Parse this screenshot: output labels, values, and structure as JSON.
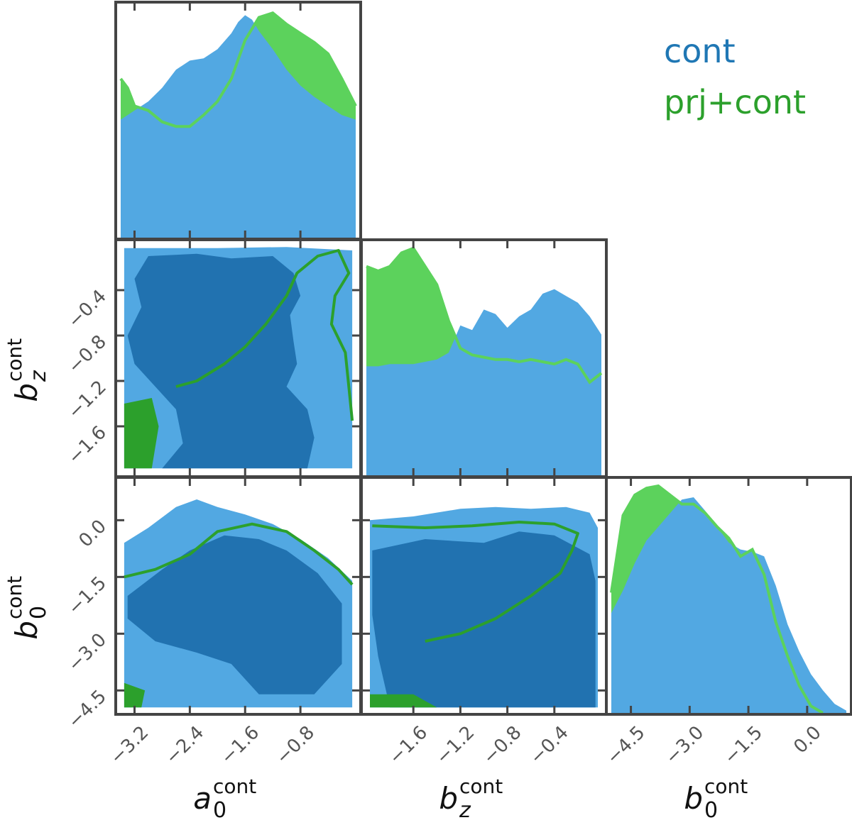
{
  "chart_data": {
    "type": "corner",
    "colors": {
      "cont": "#1f77b4",
      "cont_light": "#52a8e2",
      "cont_dark": "#2172b0",
      "prj_cont": "#2ca02c",
      "prj_cont_light": "#5cd25c",
      "frame": "#444444"
    },
    "legend": {
      "placement": "top-right",
      "entries": [
        {
          "label": "cont",
          "color": "#1f77b4"
        },
        {
          "label": "prj+cont",
          "color": "#2ca02c"
        }
      ]
    },
    "parameters": [
      {
        "id": "a0",
        "symbol": "a",
        "sub": "0",
        "sup": "cont",
        "range": [
          -3.4,
          0.0
        ],
        "ticks": [
          "−3.2",
          "−2.4",
          "−1.6",
          "−0.8"
        ],
        "tick_values": [
          -3.2,
          -2.4,
          -1.6,
          -0.8
        ]
      },
      {
        "id": "bz",
        "symbol": "b",
        "sub": "z",
        "sup": "cont",
        "range": [
          -2.0,
          0.0
        ],
        "ticks": [
          "−1.6",
          "−1.2",
          "−0.8",
          "−0.4"
        ],
        "tick_values": [
          -1.6,
          -1.2,
          -0.8,
          -0.4
        ]
      },
      {
        "id": "b0",
        "symbol": "b",
        "sub": "0",
        "sup": "cont",
        "range": [
          -5.0,
          1.0
        ],
        "ticks": [
          "−4.5",
          "−3.0",
          "−1.5",
          "0.0"
        ],
        "tick_values": [
          -4.5,
          -3.0,
          -1.5,
          0.0
        ]
      }
    ],
    "marginals": [
      {
        "param": "a0",
        "cont": {
          "x": [
            -3.4,
            -3.2,
            -3.0,
            -2.8,
            -2.6,
            -2.4,
            -2.2,
            -2.0,
            -1.8,
            -1.7,
            -1.6,
            -1.5,
            -1.4,
            -1.2,
            -1.0,
            -0.8,
            -0.6,
            -0.4,
            -0.2,
            0.0
          ],
          "y": [
            0.52,
            0.56,
            0.6,
            0.66,
            0.74,
            0.78,
            0.79,
            0.83,
            0.9,
            0.95,
            0.98,
            0.96,
            0.91,
            0.83,
            0.74,
            0.67,
            0.62,
            0.58,
            0.54,
            0.52
          ]
        },
        "prj_cont": {
          "x": [
            -3.4,
            -3.3,
            -3.2,
            -3.0,
            -2.8,
            -2.6,
            -2.4,
            -2.2,
            -2.0,
            -1.8,
            -1.6,
            -1.4,
            -1.2,
            -1.0,
            -0.8,
            -0.6,
            -0.4,
            -0.2,
            0.0
          ],
          "y": [
            0.7,
            0.66,
            0.58,
            0.56,
            0.51,
            0.49,
            0.49,
            0.54,
            0.6,
            0.7,
            0.87,
            0.97,
            0.99,
            0.94,
            0.9,
            0.86,
            0.81,
            0.7,
            0.58
          ]
        }
      },
      {
        "param": "bz",
        "cont": {
          "x": [
            -2.0,
            -1.9,
            -1.8,
            -1.7,
            -1.6,
            -1.5,
            -1.4,
            -1.3,
            -1.2,
            -1.1,
            -1.0,
            -0.9,
            -0.8,
            -0.7,
            -0.6,
            -0.5,
            -0.4,
            -0.3,
            -0.2,
            -0.1,
            0.0
          ],
          "y": [
            0.48,
            0.48,
            0.49,
            0.49,
            0.49,
            0.5,
            0.51,
            0.54,
            0.66,
            0.64,
            0.73,
            0.71,
            0.65,
            0.7,
            0.73,
            0.8,
            0.82,
            0.79,
            0.76,
            0.7,
            0.62
          ]
        },
        "prj_cont": {
          "x": [
            -2.0,
            -1.9,
            -1.8,
            -1.7,
            -1.6,
            -1.5,
            -1.4,
            -1.3,
            -1.2,
            -1.1,
            -1.0,
            -0.9,
            -0.8,
            -0.7,
            -0.6,
            -0.5,
            -0.4,
            -0.3,
            -0.2,
            -0.1,
            0.0
          ],
          "y": [
            0.92,
            0.9,
            0.92,
            0.98,
            1.0,
            0.92,
            0.84,
            0.68,
            0.56,
            0.53,
            0.52,
            0.51,
            0.51,
            0.5,
            0.51,
            0.5,
            0.49,
            0.51,
            0.49,
            0.41,
            0.45
          ]
        }
      },
      {
        "param": "b0",
        "cont": {
          "x": [
            -5.0,
            -4.7,
            -4.4,
            -4.1,
            -3.8,
            -3.5,
            -3.2,
            -2.9,
            -2.6,
            -2.3,
            -2.0,
            -1.7,
            -1.4,
            -1.1,
            -0.8,
            -0.5,
            -0.2,
            0.1,
            0.4,
            0.7,
            1.0
          ],
          "y": [
            0.44,
            0.54,
            0.66,
            0.76,
            0.82,
            0.88,
            0.94,
            0.95,
            0.89,
            0.82,
            0.75,
            0.72,
            0.71,
            0.69,
            0.56,
            0.39,
            0.27,
            0.17,
            0.1,
            0.04,
            0.01
          ]
        },
        "prj_cont": {
          "x": [
            -5.0,
            -4.7,
            -4.4,
            -4.1,
            -3.8,
            -3.5,
            -3.2,
            -2.9,
            -2.6,
            -2.3,
            -2.0,
            -1.7,
            -1.4,
            -1.1,
            -0.8,
            -0.5,
            -0.2,
            0.1,
            0.4
          ],
          "y": [
            0.53,
            0.87,
            0.96,
            0.99,
            1.0,
            0.96,
            0.92,
            0.92,
            0.88,
            0.82,
            0.77,
            0.69,
            0.72,
            0.61,
            0.4,
            0.25,
            0.12,
            0.03,
            0.0
          ]
        }
      }
    ],
    "joints": [
      {
        "x": "a0",
        "y": "bz",
        "cont_outer": [
          [
            -3.35,
            -0.03
          ],
          [
            -2.0,
            -0.03
          ],
          [
            -1.0,
            -0.02
          ],
          [
            -0.05,
            -0.05
          ],
          [
            -0.05,
            -1.97
          ],
          [
            -3.35,
            -1.97
          ]
        ],
        "cont_inner": [
          [
            -3.0,
            -0.1
          ],
          [
            -2.3,
            -0.08
          ],
          [
            -1.8,
            -0.12
          ],
          [
            -1.2,
            -0.1
          ],
          [
            -0.9,
            -0.25
          ],
          [
            -0.8,
            -0.45
          ],
          [
            -0.95,
            -0.62
          ],
          [
            -0.9,
            -0.85
          ],
          [
            -0.85,
            -1.05
          ],
          [
            -1.0,
            -1.25
          ],
          [
            -0.7,
            -1.45
          ],
          [
            -0.6,
            -1.7
          ],
          [
            -0.7,
            -1.97
          ],
          [
            -2.8,
            -1.97
          ],
          [
            -2.5,
            -1.75
          ],
          [
            -2.6,
            -1.45
          ],
          [
            -2.9,
            -1.25
          ],
          [
            -3.2,
            -1.05
          ],
          [
            -3.3,
            -0.8
          ],
          [
            -3.1,
            -0.55
          ],
          [
            -3.2,
            -0.3
          ]
        ],
        "prj_inner": [
          [
            -3.35,
            -1.4
          ],
          [
            -2.95,
            -1.35
          ],
          [
            -2.85,
            -1.6
          ],
          [
            -2.95,
            -1.97
          ],
          [
            -3.35,
            -1.97
          ]
        ],
        "prj_contour": [
          [
            -2.6,
            -1.25
          ],
          [
            -2.3,
            -1.2
          ],
          [
            -1.9,
            -1.05
          ],
          [
            -1.6,
            -0.9
          ],
          [
            -1.3,
            -0.7
          ],
          [
            -1.0,
            -0.45
          ],
          [
            -0.85,
            -0.25
          ],
          [
            -0.55,
            -0.1
          ],
          [
            -0.25,
            -0.05
          ],
          [
            -0.1,
            -0.25
          ],
          [
            -0.3,
            -0.45
          ],
          [
            -0.35,
            -0.7
          ],
          [
            -0.15,
            -0.95
          ],
          [
            -0.1,
            -1.25
          ],
          [
            -0.05,
            -1.55
          ]
        ]
      },
      {
        "x": "a0",
        "y": "b0",
        "cont_outer": [
          [
            -3.35,
            -0.6
          ],
          [
            -3.0,
            -0.2
          ],
          [
            -2.6,
            0.35
          ],
          [
            -2.3,
            0.55
          ],
          [
            -2.0,
            0.35
          ],
          [
            -1.6,
            0.15
          ],
          [
            -1.2,
            -0.1
          ],
          [
            -0.8,
            -0.5
          ],
          [
            -0.4,
            -1.0
          ],
          [
            -0.05,
            -1.6
          ],
          [
            -0.05,
            -4.95
          ],
          [
            -3.35,
            -4.95
          ]
        ],
        "cont_inner": [
          [
            -2.8,
            -1.3
          ],
          [
            -2.4,
            -0.8
          ],
          [
            -1.9,
            -0.4
          ],
          [
            -1.4,
            -0.5
          ],
          [
            -1.0,
            -0.8
          ],
          [
            -0.55,
            -1.4
          ],
          [
            -0.2,
            -2.2
          ],
          [
            -0.2,
            -3.8
          ],
          [
            -0.6,
            -4.6
          ],
          [
            -1.4,
            -4.6
          ],
          [
            -1.8,
            -3.8
          ],
          [
            -2.3,
            -3.5
          ],
          [
            -2.9,
            -3.2
          ],
          [
            -3.3,
            -2.6
          ],
          [
            -3.3,
            -2.0
          ]
        ],
        "prj_inner": [
          [
            -3.35,
            -4.3
          ],
          [
            -3.05,
            -4.5
          ],
          [
            -3.1,
            -4.95
          ],
          [
            -3.35,
            -4.95
          ]
        ],
        "prj_contour": [
          [
            -3.35,
            -1.5
          ],
          [
            -2.9,
            -1.3
          ],
          [
            -2.4,
            -0.9
          ],
          [
            -2.0,
            -0.3
          ],
          [
            -1.5,
            -0.1
          ],
          [
            -1.0,
            -0.3
          ],
          [
            -0.6,
            -0.8
          ],
          [
            -0.25,
            -1.3
          ],
          [
            -0.05,
            -1.7
          ]
        ]
      },
      {
        "x": "bz",
        "y": "b0",
        "cont_outer": [
          [
            -1.97,
            0.0
          ],
          [
            -1.6,
            0.1
          ],
          [
            -1.2,
            0.3
          ],
          [
            -0.9,
            0.35
          ],
          [
            -0.6,
            0.3
          ],
          [
            -0.3,
            0.35
          ],
          [
            -0.1,
            0.2
          ],
          [
            -0.03,
            -0.2
          ],
          [
            -0.03,
            -4.95
          ],
          [
            -1.97,
            -4.95
          ]
        ],
        "cont_inner": [
          [
            -1.95,
            -0.8
          ],
          [
            -1.5,
            -0.5
          ],
          [
            -1.0,
            -0.6
          ],
          [
            -0.7,
            -0.3
          ],
          [
            -0.4,
            -0.4
          ],
          [
            -0.1,
            -0.9
          ],
          [
            -0.05,
            -1.6
          ],
          [
            -0.05,
            -4.95
          ],
          [
            -1.8,
            -4.95
          ],
          [
            -1.9,
            -3.6
          ],
          [
            -1.95,
            -2.5
          ]
        ],
        "prj_inner": [
          [
            -1.97,
            -4.6
          ],
          [
            -1.6,
            -4.6
          ],
          [
            -1.4,
            -4.95
          ],
          [
            -1.97,
            -4.95
          ]
        ],
        "prj_contour": [
          [
            -1.95,
            -0.15
          ],
          [
            -1.5,
            -0.2
          ],
          [
            -1.1,
            -0.15
          ],
          [
            -0.7,
            -0.05
          ],
          [
            -0.4,
            -0.1
          ],
          [
            -0.2,
            -0.35
          ],
          [
            -0.25,
            -0.8
          ],
          [
            -0.35,
            -1.4
          ],
          [
            -0.6,
            -2.0
          ],
          [
            -0.9,
            -2.6
          ],
          [
            -1.2,
            -3.0
          ],
          [
            -1.5,
            -3.2
          ]
        ]
      }
    ]
  }
}
